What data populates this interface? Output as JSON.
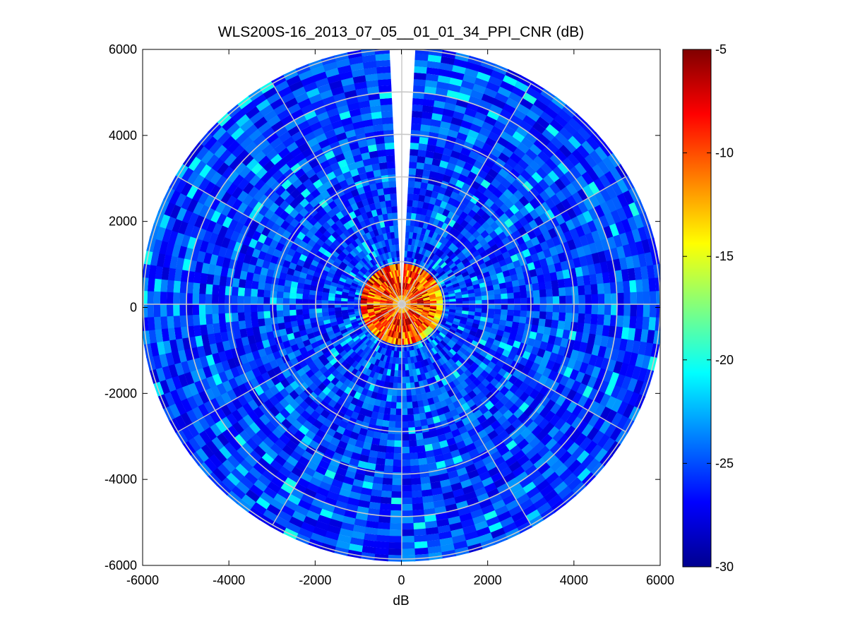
{
  "chart_data": {
    "type": "heatmap",
    "subtype": "polar-ppi",
    "title": "WLS200S-16_2013_07_05__01_01_34_PPI_CNR (dB)",
    "xlabel": "dB",
    "ylabel": "",
    "xlim": [
      -6000,
      6000
    ],
    "ylim": [
      -6000,
      6000
    ],
    "x_ticks": [
      -6000,
      -4000,
      -2000,
      0,
      2000,
      4000,
      6000
    ],
    "y_ticks": [
      6000,
      4000,
      2000,
      0,
      -2000,
      -4000,
      -6000
    ],
    "range_max": 6000,
    "range_rings": [
      1000,
      2000,
      3000,
      4000,
      5000,
      6000
    ],
    "spokes_deg": [
      0,
      30,
      60,
      90,
      120,
      150,
      180,
      210,
      240,
      270,
      300,
      330
    ],
    "blind_sector_deg": [
      -4,
      4
    ],
    "near_field": {
      "range_max": 900,
      "cnr_db": [
        -5,
        -14
      ]
    },
    "background_cnr_db": [
      -30,
      -23
    ],
    "grid": true,
    "colormap": "jet",
    "colorbar": {
      "clim": [
        -30,
        -5
      ],
      "ticks": [
        -5,
        -10,
        -15,
        -20,
        -25,
        -30
      ]
    }
  }
}
